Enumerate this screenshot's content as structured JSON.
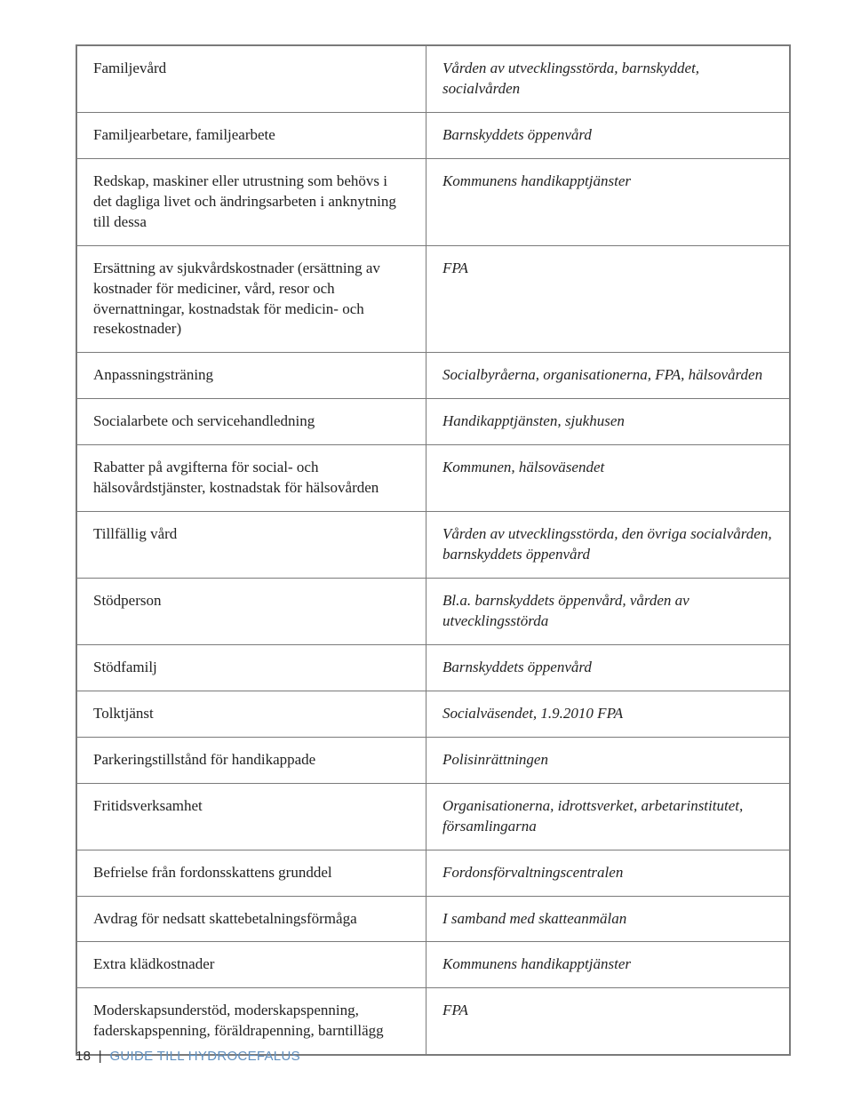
{
  "table": {
    "border_color": "#7a7a7a",
    "background_color": "#ffffff",
    "left_fontstyle": "normal",
    "right_fontstyle": "italic",
    "fontsize": 17,
    "text_color": "#222222",
    "rows": [
      {
        "left": "Familjevård",
        "right": "Vården av utvecklingsstörda, barnskyddet, socialvården"
      },
      {
        "left": "Familjearbetare, familjearbete",
        "right": "Barnskyddets öppenvård"
      },
      {
        "left": "Redskap, maskiner eller utrustning som behövs i det dagliga livet och ändringsarbeten i anknytning till dessa",
        "right": "Kommunens handikapptjänster"
      },
      {
        "left": "Ersättning av sjukvårdskostnader (ersättning av kostnader för mediciner, vård, resor och övernattningar, kostnadstak för medicin- och resekostnader)",
        "right": "FPA"
      },
      {
        "left": "Anpassningsträning",
        "right": "Socialbyråerna, organisationerna, FPA, hälsovården"
      },
      {
        "left": "Socialarbete och servicehandledning",
        "right": "Handikapptjänsten, sjukhusen"
      },
      {
        "left": "Rabatter på avgifterna för social- och hälsovårdstjänster, kostnadstak för hälsovården",
        "right": "Kommunen, hälsoväsendet"
      },
      {
        "left": "Tillfällig vård",
        "right": "Vården av utvecklingsstörda, den övriga socialvården, barnskyddets öppenvård"
      },
      {
        "left": "Stödperson",
        "right": "Bl.a. barnskyddets öppenvård, vården av utvecklingsstörda"
      },
      {
        "left": "Stödfamilj",
        "right": "Barnskyddets öppenvård"
      },
      {
        "left": "Tolktjänst",
        "right": "Socialväsendet, 1.9.2010 FPA"
      },
      {
        "left": "Parkeringstillstånd för handikappade",
        "right": "Polisinrättningen"
      },
      {
        "left": "Fritidsverksamhet",
        "right": "Organisationerna, idrottsverket, arbetarinstitutet, församlingarna"
      },
      {
        "left": "Befrielse från fordonsskattens grunddel",
        "right": "Fordonsförvaltningscentralen"
      },
      {
        "left": "Avdrag för nedsatt skattebetalningsförmåga",
        "right": "I samband med skatteanmälan"
      },
      {
        "left": "Extra klädkostnader",
        "right": "Kommunens handikapptjänster"
      },
      {
        "left": "Moderskapsunderstöd, moderskapspenning, faderskapspenning, föräldrapenning, barntillägg",
        "right": "FPA"
      }
    ]
  },
  "footer": {
    "page_number": "18",
    "separator": "|",
    "title": "GUIDE TILL HYDROCEFALUS",
    "title_color": "#5f8fbf",
    "fontsize": 15
  }
}
